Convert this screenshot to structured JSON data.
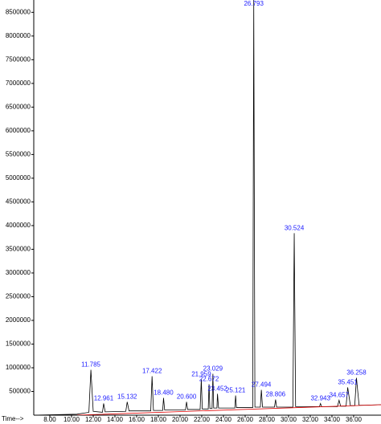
{
  "chart_data": {
    "type": "chromatogram",
    "x_label": "Time-->",
    "xlim": [
      6.52,
      38.52
    ],
    "xticks": [
      {
        "value": 8,
        "label": "8.00"
      },
      {
        "value": 10,
        "label": "10.00"
      },
      {
        "value": 12,
        "label": "12.00"
      },
      {
        "value": 14,
        "label": "14.00"
      },
      {
        "value": 16,
        "label": "16.00"
      },
      {
        "value": 18,
        "label": "18.00"
      },
      {
        "value": 20,
        "label": "20.00"
      },
      {
        "value": 22,
        "label": "22.00"
      },
      {
        "value": 24,
        "label": "24.00"
      },
      {
        "value": 26,
        "label": "26.00"
      },
      {
        "value": 28,
        "label": "28.00"
      },
      {
        "value": 30,
        "label": "30.00"
      },
      {
        "value": 32,
        "label": "32.00"
      },
      {
        "value": 34,
        "label": "34.00"
      },
      {
        "value": 36,
        "label": "36.00"
      }
    ],
    "ylim": [
      0,
      8760000
    ],
    "yticks": [
      500000,
      1000000,
      1500000,
      2000000,
      2500000,
      3000000,
      3500000,
      4000000,
      4500000,
      5000000,
      5500000,
      6000000,
      6500000,
      7000000,
      7500000,
      8000000,
      8500000
    ],
    "label_color": "#1a1aff",
    "series": [
      {
        "color": "#000000",
        "x": [
          6.52,
          10.5,
          11.6,
          11.785,
          12.0,
          12.85,
          12.961,
          13.1,
          15.0,
          15.132,
          15.3,
          17.3,
          17.422,
          17.55,
          18.4,
          18.48,
          18.58,
          20.5,
          20.6,
          20.7,
          21.85,
          21.959,
          22.05,
          22.6,
          22.672,
          22.75,
          22.95,
          23.029,
          23.1,
          23.4,
          23.452,
          23.55,
          25.05,
          25.121,
          25.2,
          26.7,
          26.793,
          26.9,
          27.4,
          27.494,
          27.6,
          28.7,
          28.806,
          28.9,
          30.4,
          30.524,
          30.65,
          32.85,
          32.943,
          33.05,
          34.5,
          34.657,
          34.8,
          35.3,
          35.451,
          35.7,
          36.1,
          36.258,
          36.5,
          37.0,
          38.52
        ],
        "values": [
          0,
          20000,
          60000,
          958000,
          80000,
          60000,
          246000,
          70000,
          80000,
          280000,
          90000,
          90000,
          822000,
          100000,
          100000,
          364000,
          110000,
          110000,
          280000,
          120000,
          120000,
          754000,
          130000,
          130000,
          652000,
          140000,
          140000,
          873000,
          150000,
          150000,
          450000,
          150000,
          150000,
          415000,
          160000,
          160000,
          8760000,
          170000,
          170000,
          534000,
          170000,
          170000,
          330000,
          170000,
          170000,
          3839000,
          180000,
          180000,
          246000,
          180000,
          180000,
          314000,
          190000,
          190000,
          585000,
          200000,
          200000,
          788000,
          210000,
          210000,
          220000
        ],
        "labels": [
          null,
          null,
          null,
          "11.785",
          null,
          null,
          "12.961",
          null,
          null,
          "15.132",
          null,
          null,
          "17.422",
          null,
          null,
          "18.480",
          null,
          null,
          "20.600",
          null,
          null,
          "21.959",
          null,
          null,
          "22.672",
          null,
          null,
          "23.029",
          null,
          null,
          "23.452",
          null,
          null,
          "25.121",
          null,
          null,
          "26.793",
          null,
          null,
          "27.494",
          null,
          null,
          "28.806",
          null,
          null,
          "30.524",
          null,
          null,
          "32.943",
          null,
          null,
          "34.657",
          null,
          null,
          "35.451",
          null,
          null,
          "36.258",
          null,
          null,
          null
        ]
      },
      {
        "color": "#e00000",
        "x": [
          10.5,
          38.52
        ],
        "values": [
          0,
          220000
        ],
        "labels": [
          null,
          null
        ]
      }
    ]
  }
}
